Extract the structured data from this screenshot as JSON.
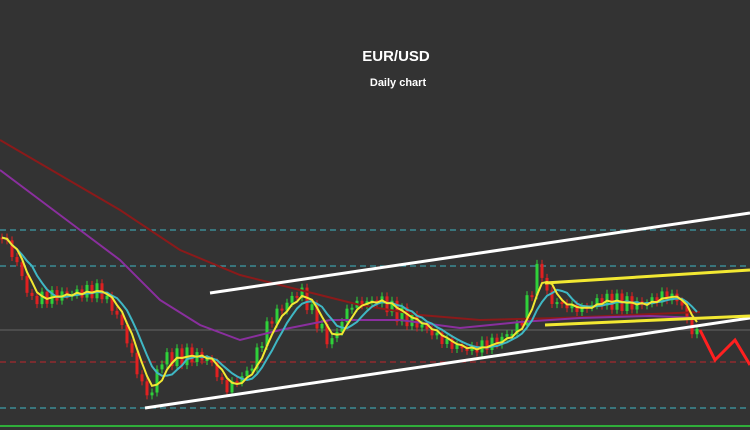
{
  "header": {
    "title": "EUR/USD",
    "subtitle": "Daily chart"
  }
}
